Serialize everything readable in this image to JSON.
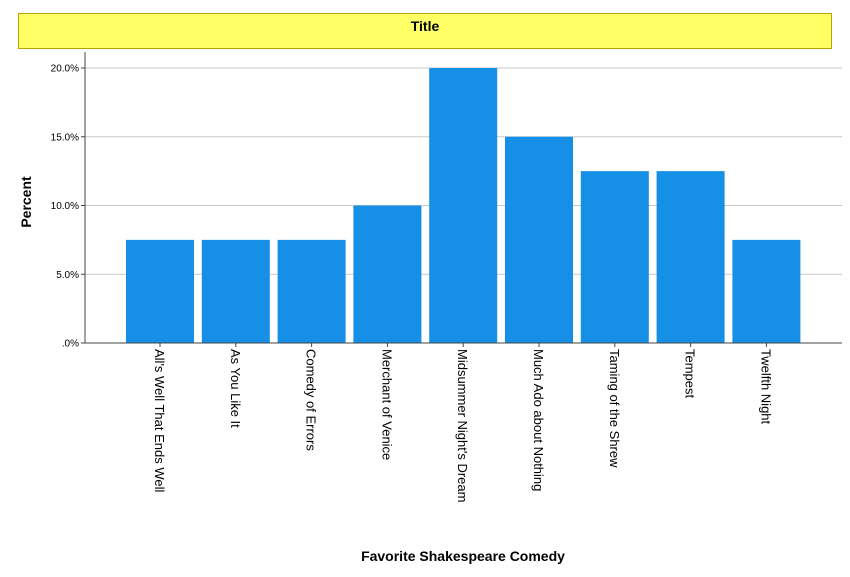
{
  "chart_data": {
    "type": "bar",
    "title": "Title",
    "xlabel": "Favorite Shakespeare Comedy",
    "ylabel": "Percent",
    "categories": [
      "All's Well That Ends Well",
      "As You Like It",
      "Comedy of Errors",
      "Merchant of Venice",
      "Midsummer Night's Dream",
      "Much Ado about Nothing",
      "Taming of the Shrew",
      "Tempest",
      "Twelfth Night"
    ],
    "values": [
      7.5,
      7.5,
      7.5,
      10.0,
      20.0,
      15.0,
      12.5,
      12.5,
      7.5
    ],
    "ylim": [
      0,
      20
    ],
    "yticks": [
      0,
      5,
      10,
      15,
      20
    ],
    "ytick_labels": [
      ".0%",
      "5.0%",
      "10.0%",
      "15.0%",
      "20.0%"
    ],
    "grid": true,
    "bar_color": "#1590e6",
    "title_bg_color": "#ffff66",
    "grid_color": "#c8c8c8"
  }
}
